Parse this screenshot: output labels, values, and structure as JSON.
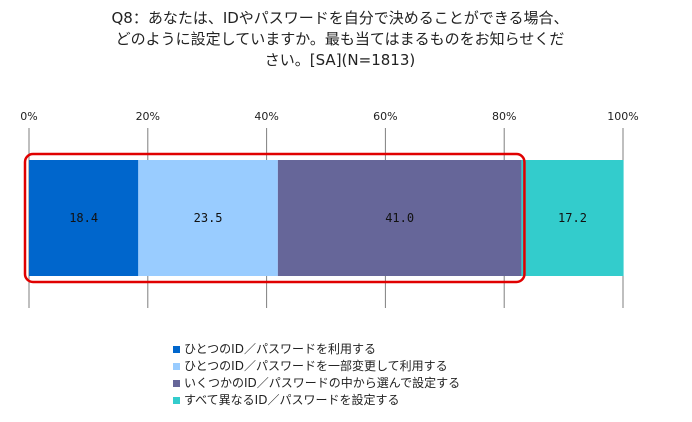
{
  "chart_data": {
    "type": "bar",
    "orientation": "horizontal",
    "stacked": true,
    "title": [
      "Q8：あなたは、IDやパスワードを自分で決めることができる場合、",
      "どのように設定していますか。最も当てはまるものをお知らせくだ",
      "さい。[SA](N=1813)"
    ],
    "xlim": [
      0,
      100
    ],
    "xticks": [
      "0%",
      "20%",
      "40%",
      "60%",
      "80%",
      "100%"
    ],
    "xtick_values": [
      0,
      20,
      40,
      60,
      80,
      100
    ],
    "grid": true,
    "legend_position": "bottom",
    "series": [
      {
        "name": "ひとつのID／パスワードを利用する",
        "value": 18.4,
        "label": "18.4",
        "color": "#0066CC"
      },
      {
        "name": "ひとつのID／パスワードを一部変更して利用する",
        "value": 23.5,
        "label": "23.5",
        "color": "#99CCFF"
      },
      {
        "name": "いくつかのID／パスワードの中から選んで設定する",
        "value": 41.0,
        "label": "41.0",
        "color": "#666699"
      },
      {
        "name": "すべて異なるID／パスワードを設定する",
        "value": 17.2,
        "label": "17.2",
        "color": "#33CCCC"
      }
    ],
    "highlight": {
      "from_series": 0,
      "to_series": 2,
      "color": "#E00000"
    }
  }
}
